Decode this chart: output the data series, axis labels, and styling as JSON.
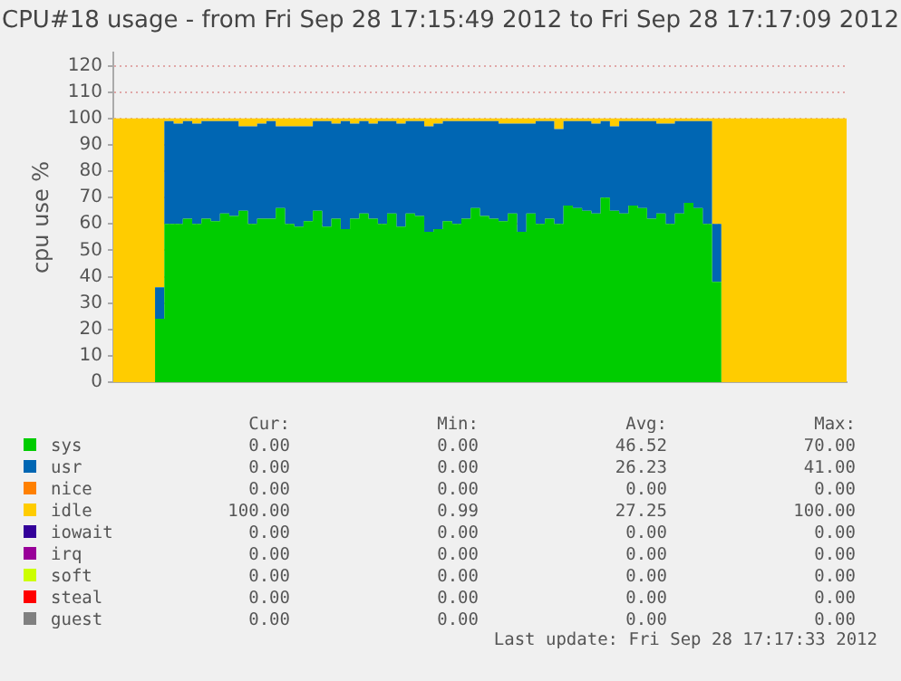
{
  "chart_data": {
    "type": "area",
    "stacked": true,
    "title": "CPU#18 usage - from Fri Sep 28 17:15:49 2012 to Fri Sep 28 17:17:09 2012",
    "ylabel": "cpu use %",
    "categories": [
      null,
      null,
      null,
      null,
      null,
      null,
      null,
      null,
      null,
      null,
      null,
      null,
      null,
      null,
      null,
      null,
      null,
      null,
      null,
      null,
      null,
      null,
      null,
      null,
      null,
      null,
      null,
      null,
      null,
      null,
      null,
      null,
      null,
      null,
      null,
      null,
      null,
      null,
      null,
      null,
      null,
      null,
      null,
      null,
      null,
      null,
      null,
      null,
      null,
      null,
      null,
      null,
      null,
      null,
      null,
      null,
      null,
      null,
      null,
      null,
      null,
      null,
      null,
      null,
      null,
      null,
      null,
      null,
      null,
      null,
      null,
      null,
      null,
      null,
      null,
      null,
      null,
      null,
      null,
      null
    ],
    "series": [
      {
        "name": "sys",
        "color": "#00cc00",
        "values": [
          0,
          0,
          0,
          0,
          0,
          24,
          60,
          60,
          62,
          60,
          62,
          61,
          64,
          63,
          65,
          60,
          62,
          62,
          66,
          60,
          59,
          61,
          65,
          59,
          62,
          58,
          62,
          64,
          62,
          60,
          64,
          59,
          64,
          63,
          57,
          58,
          61,
          60,
          62,
          66,
          63,
          62,
          61,
          64,
          57,
          64,
          60,
          62,
          60,
          67,
          66,
          65,
          64,
          70,
          65,
          64,
          67,
          66,
          62,
          64,
          60,
          64,
          68,
          66,
          60,
          38,
          0,
          0,
          0,
          0,
          0,
          0,
          0,
          0,
          0,
          0,
          0,
          0,
          0,
          0
        ]
      },
      {
        "name": "usr",
        "color": "#0066b3",
        "values": [
          0,
          0,
          0,
          0,
          0,
          12,
          39,
          38,
          37,
          38,
          37,
          38,
          35,
          36,
          32,
          37,
          36,
          37,
          31,
          37,
          38,
          36,
          34,
          40,
          36,
          41,
          36,
          35,
          36,
          39,
          35,
          39,
          35,
          36,
          40,
          40,
          38,
          39,
          37,
          33,
          36,
          37,
          37,
          34,
          41,
          34,
          39,
          37,
          36,
          32,
          33,
          34,
          34,
          29,
          32,
          35,
          32,
          33,
          37,
          34,
          38,
          35,
          31,
          33,
          39,
          22,
          0,
          0,
          0,
          0,
          0,
          0,
          0,
          0,
          0,
          0,
          0,
          0,
          0,
          0
        ]
      },
      {
        "name": "nice",
        "color": "#ff8000",
        "values": [
          null,
          null,
          null,
          null,
          null,
          null,
          null,
          null,
          null,
          null,
          null,
          null,
          null,
          null,
          null,
          null,
          null,
          null,
          null,
          null,
          null,
          null,
          null,
          null,
          null,
          null,
          null,
          null,
          null,
          null,
          null,
          null,
          null,
          null,
          null,
          null,
          null,
          null,
          null,
          null,
          null,
          null,
          null,
          null,
          null,
          null,
          null,
          null,
          null,
          null,
          null,
          null,
          null,
          null,
          null,
          null,
          null,
          null,
          null,
          null,
          null,
          null,
          null,
          null,
          null,
          null,
          null,
          null,
          null,
          null,
          null,
          null,
          null,
          null,
          null,
          null,
          null,
          null,
          null,
          null
        ]
      },
      {
        "name": "idle",
        "color": "#ffcc00",
        "values": [
          100,
          100,
          100,
          100,
          100,
          64,
          1,
          2,
          1,
          2,
          1,
          1,
          1,
          1,
          3,
          3,
          2,
          1,
          3,
          3,
          3,
          3,
          1,
          1,
          2,
          1,
          2,
          1,
          2,
          1,
          1,
          2,
          1,
          1,
          3,
          2,
          1,
          1,
          1,
          1,
          1,
          1,
          2,
          2,
          2,
          2,
          1,
          1,
          4,
          1,
          1,
          1,
          2,
          1,
          3,
          1,
          1,
          1,
          1,
          2,
          2,
          1,
          1,
          1,
          1,
          40,
          100,
          100,
          100,
          100,
          100,
          100,
          100,
          100,
          100,
          100,
          100,
          100,
          100,
          100
        ]
      },
      {
        "name": "iowait",
        "color": "#330099",
        "values": [
          null,
          null,
          null,
          null,
          null,
          null,
          null,
          null,
          null,
          null,
          null,
          null,
          null,
          null,
          null,
          null,
          null,
          null,
          null,
          null,
          null,
          null,
          null,
          null,
          null,
          null,
          null,
          null,
          null,
          null,
          null,
          null,
          null,
          null,
          null,
          null,
          null,
          null,
          null,
          null,
          null,
          null,
          null,
          null,
          null,
          null,
          null,
          null,
          null,
          null,
          null,
          null,
          null,
          null,
          null,
          null,
          null,
          null,
          null,
          null,
          null,
          null,
          null,
          null,
          null,
          null,
          null,
          null,
          null,
          null,
          null,
          null,
          null,
          null,
          null,
          null,
          null,
          null,
          null,
          null
        ]
      },
      {
        "name": "irq",
        "color": "#990099",
        "values": [
          null,
          null,
          null,
          null,
          null,
          null,
          null,
          null,
          null,
          null,
          null,
          null,
          null,
          null,
          null,
          null,
          null,
          null,
          null,
          null,
          null,
          null,
          null,
          null,
          null,
          null,
          null,
          null,
          null,
          null,
          null,
          null,
          null,
          null,
          null,
          null,
          null,
          null,
          null,
          null,
          null,
          null,
          null,
          null,
          null,
          null,
          null,
          null,
          null,
          null,
          null,
          null,
          null,
          null,
          null,
          null,
          null,
          null,
          null,
          null,
          null,
          null,
          null,
          null,
          null,
          null,
          null,
          null,
          null,
          null,
          null,
          null,
          null,
          null,
          null,
          null,
          null,
          null,
          null,
          null
        ]
      },
      {
        "name": "soft",
        "color": "#ccff00",
        "values": [
          null,
          null,
          null,
          null,
          null,
          null,
          null,
          null,
          null,
          null,
          null,
          null,
          null,
          null,
          null,
          null,
          null,
          null,
          null,
          null,
          null,
          null,
          null,
          null,
          null,
          null,
          null,
          null,
          null,
          null,
          null,
          null,
          null,
          null,
          null,
          null,
          null,
          null,
          null,
          null,
          null,
          null,
          null,
          null,
          null,
          null,
          null,
          null,
          null,
          null,
          null,
          null,
          null,
          null,
          null,
          null,
          null,
          null,
          null,
          null,
          null,
          null,
          null,
          null,
          null,
          null,
          null,
          null,
          null,
          null,
          null,
          null,
          null,
          null,
          null,
          null,
          null,
          null,
          null,
          null
        ]
      },
      {
        "name": "steal",
        "color": "#ff0000",
        "values": [
          null,
          null,
          null,
          null,
          null,
          null,
          null,
          null,
          null,
          null,
          null,
          null,
          null,
          null,
          null,
          null,
          null,
          null,
          null,
          null,
          null,
          null,
          null,
          null,
          null,
          null,
          null,
          null,
          null,
          null,
          null,
          null,
          null,
          null,
          null,
          null,
          null,
          null,
          null,
          null,
          null,
          null,
          null,
          null,
          null,
          null,
          null,
          null,
          null,
          null,
          null,
          null,
          null,
          null,
          null,
          null,
          null,
          null,
          null,
          null,
          null,
          null,
          null,
          null,
          null,
          null,
          null,
          null,
          null,
          null,
          null,
          null,
          null,
          null,
          null,
          null,
          null,
          null,
          null,
          null
        ]
      },
      {
        "name": "guest",
        "color": "#808080",
        "values": [
          null,
          null,
          null,
          null,
          null,
          null,
          null,
          null,
          null,
          null,
          null,
          null,
          null,
          null,
          null,
          null,
          null,
          null,
          null,
          null,
          null,
          null,
          null,
          null,
          null,
          null,
          null,
          null,
          null,
          null,
          null,
          null,
          null,
          null,
          null,
          null,
          null,
          null,
          null,
          null,
          null,
          null,
          null,
          null,
          null,
          null,
          null,
          null,
          null,
          null,
          null,
          null,
          null,
          null,
          null,
          null,
          null,
          null,
          null,
          null,
          null,
          null,
          null,
          null,
          null,
          null,
          null,
          null,
          null,
          null,
          null,
          null,
          null,
          null,
          null,
          null,
          null,
          null,
          null,
          null
        ]
      }
    ],
    "ylim": [
      0,
      125
    ],
    "yticks": [
      0,
      10,
      20,
      30,
      40,
      50,
      60,
      70,
      80,
      90,
      100,
      110,
      120
    ],
    "grid": "y",
    "legend": "bottom",
    "tick_labels": "y",
    "annotations": [
      "Cur:",
      "Min:",
      "Avg:",
      "Max:",
      "0.00",
      "0.00",
      "46.52",
      "70.00",
      "0.00",
      "0.00",
      "26.23",
      "41.00",
      "0.00",
      "0.00",
      "0.00",
      "0.00",
      "100.00",
      "0.99",
      "27.25",
      "100.00",
      "0.00",
      "0.00",
      "0.00",
      "0.00",
      "0.00",
      "0.00",
      "0.00",
      "0.00",
      "0.00",
      "0.00",
      "0.00",
      "0.00",
      "0.00",
      "0.00",
      "0.00",
      "0.00",
      "0.00",
      "0.00",
      "0.00",
      "0.00",
      "Last update: Fri Sep 28 17:17:33 2012"
    ]
  }
}
